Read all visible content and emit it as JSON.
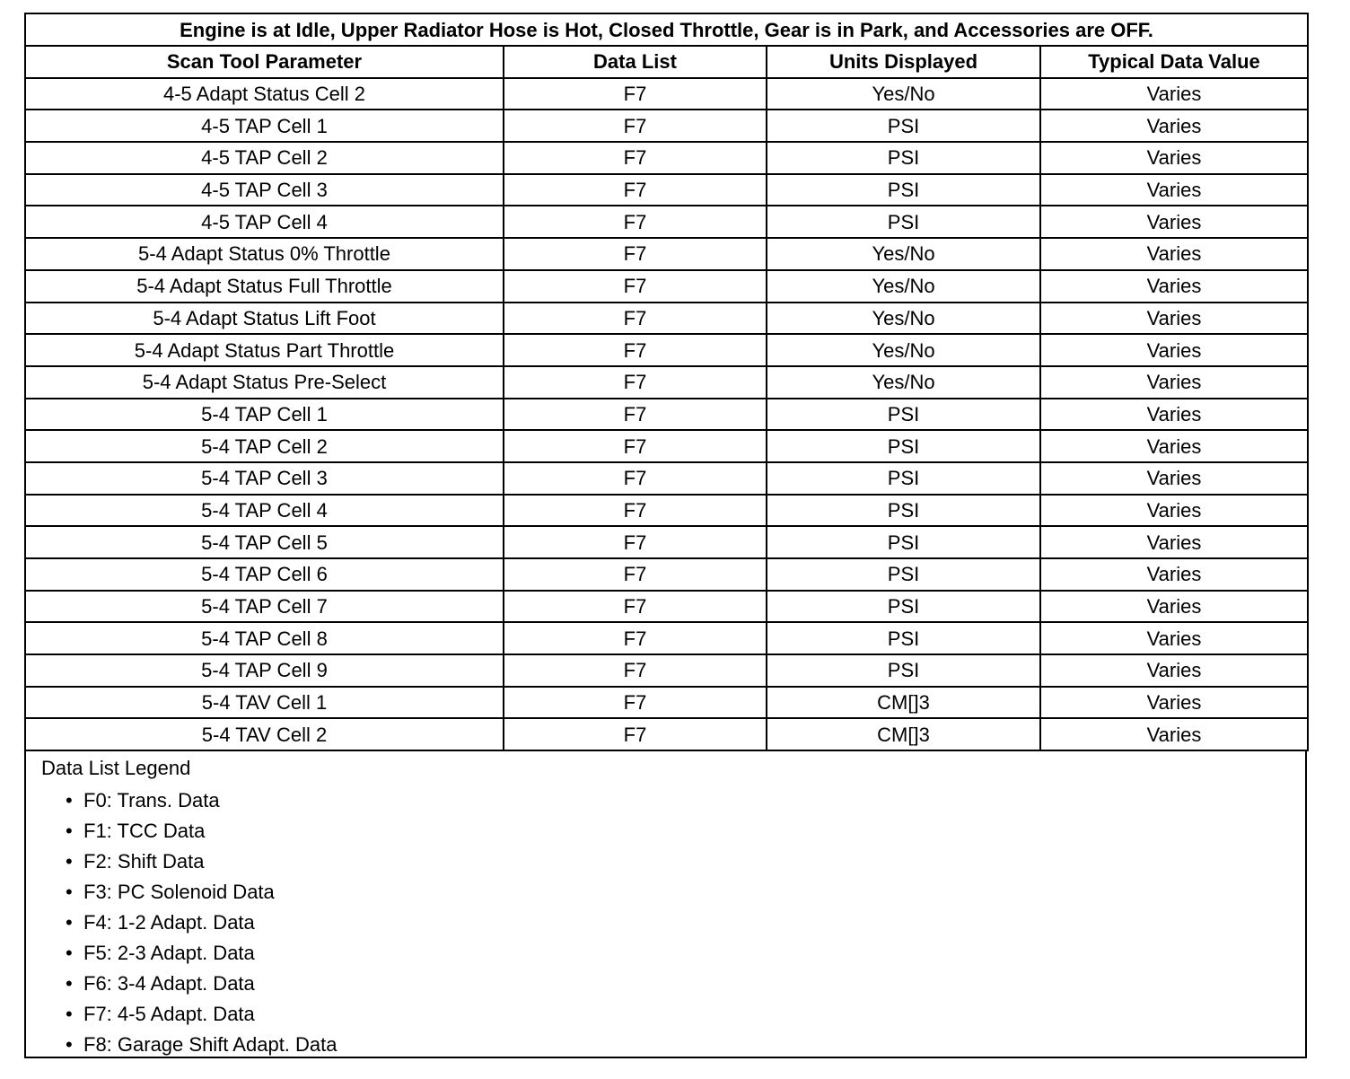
{
  "title": "Engine is at Idle, Upper Radiator Hose is Hot, Closed Throttle, Gear is in Park, and Accessories are OFF.",
  "columns": [
    "Scan Tool Parameter",
    "Data List",
    "Units Displayed",
    "Typical Data Value"
  ],
  "rows": [
    [
      "4-5 Adapt Status Cell 2",
      "F7",
      "Yes/No",
      "Varies"
    ],
    [
      "4-5 TAP Cell 1",
      "F7",
      "PSI",
      "Varies"
    ],
    [
      "4-5 TAP Cell 2",
      "F7",
      "PSI",
      "Varies"
    ],
    [
      "4-5 TAP Cell 3",
      "F7",
      "PSI",
      "Varies"
    ],
    [
      "4-5 TAP Cell 4",
      "F7",
      "PSI",
      "Varies"
    ],
    [
      "5-4 Adapt Status 0% Throttle",
      "F7",
      "Yes/No",
      "Varies"
    ],
    [
      "5-4 Adapt Status Full Throttle",
      "F7",
      "Yes/No",
      "Varies"
    ],
    [
      "5-4 Adapt Status Lift Foot",
      "F7",
      "Yes/No",
      "Varies"
    ],
    [
      "5-4 Adapt Status Part Throttle",
      "F7",
      "Yes/No",
      "Varies"
    ],
    [
      "5-4 Adapt Status Pre-Select",
      "F7",
      "Yes/No",
      "Varies"
    ],
    [
      "5-4 TAP Cell 1",
      "F7",
      "PSI",
      "Varies"
    ],
    [
      "5-4 TAP Cell 2",
      "F7",
      "PSI",
      "Varies"
    ],
    [
      "5-4 TAP Cell 3",
      "F7",
      "PSI",
      "Varies"
    ],
    [
      "5-4 TAP Cell 4",
      "F7",
      "PSI",
      "Varies"
    ],
    [
      "5-4 TAP Cell 5",
      "F7",
      "PSI",
      "Varies"
    ],
    [
      "5-4 TAP Cell 6",
      "F7",
      "PSI",
      "Varies"
    ],
    [
      "5-4 TAP Cell 7",
      "F7",
      "PSI",
      "Varies"
    ],
    [
      "5-4 TAP Cell 8",
      "F7",
      "PSI",
      "Varies"
    ],
    [
      "5-4 TAP Cell 9",
      "F7",
      "PSI",
      "Varies"
    ],
    [
      "5-4 TAV Cell 1",
      "F7",
      "CM[]3",
      "Varies"
    ],
    [
      "5-4 TAV Cell 2",
      "F7",
      "CM[]3",
      "Varies"
    ]
  ],
  "legend": {
    "title": "Data List Legend",
    "items": [
      "F0: Trans. Data",
      "F1: TCC Data",
      "F2: Shift Data",
      "F3: PC Solenoid Data",
      "F4: 1-2 Adapt. Data",
      "F5: 2-3 Adapt. Data",
      "F6: 3-4 Adapt. Data",
      "F7: 4-5 Adapt. Data",
      "F8: Garage Shift Adapt. Data"
    ]
  }
}
